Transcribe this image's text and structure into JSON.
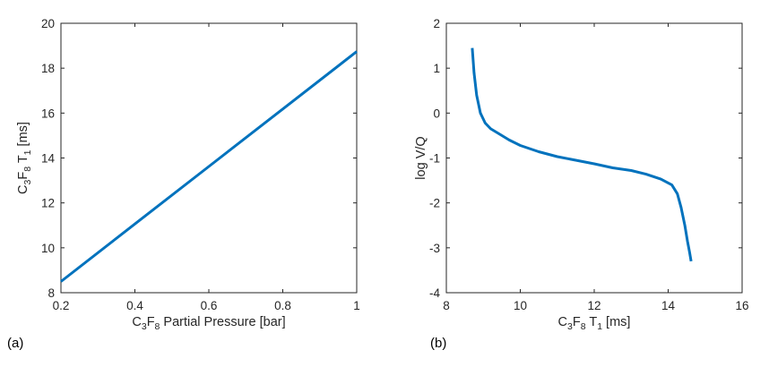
{
  "colors": {
    "series": "#0072BD",
    "axis": "#262626"
  },
  "chart_data": [
    {
      "type": "line",
      "panel_label": "(a)",
      "xlim": [
        0.2,
        1
      ],
      "ylim": [
        8,
        20
      ],
      "xticks": [
        0.2,
        0.4,
        0.6,
        0.8,
        1
      ],
      "xtick_labels": [
        "0.2",
        "0.4",
        "0.6",
        "0.8",
        "1"
      ],
      "yticks": [
        8,
        10,
        12,
        14,
        16,
        18,
        20
      ],
      "ytick_labels": [
        "8",
        "10",
        "12",
        "14",
        "16",
        "18",
        "20"
      ],
      "xlabel": {
        "parts": [
          "C",
          "3",
          "F",
          "8",
          " Partial Pressure [bar]"
        ]
      },
      "ylabel": {
        "parts": [
          "C",
          "3",
          "F",
          "8",
          " T",
          "1",
          " [ms]"
        ]
      },
      "grid": false,
      "series": [
        {
          "x": [
            0.2,
            0.4,
            0.6,
            0.8,
            1.0
          ],
          "y": [
            8.5,
            11.06,
            13.62,
            16.18,
            18.74
          ]
        }
      ]
    },
    {
      "type": "line",
      "panel_label": "(b)",
      "xlim": [
        8,
        16
      ],
      "ylim": [
        -4,
        2
      ],
      "xticks": [
        8,
        10,
        12,
        14,
        16
      ],
      "xtick_labels": [
        "8",
        "10",
        "12",
        "14",
        "16"
      ],
      "yticks": [
        -4,
        -3,
        -2,
        -1,
        0,
        1,
        2
      ],
      "ytick_labels": [
        "-4",
        "-3",
        "-2",
        "-1",
        "0",
        "1",
        "2"
      ],
      "xlabel": {
        "parts": [
          "C",
          "3",
          "F",
          "8",
          " T",
          "1",
          " [ms]"
        ]
      },
      "ylabel": {
        "text": "log V/Q"
      },
      "grid": false,
      "series": [
        {
          "x": [
            8.7,
            8.75,
            8.82,
            8.92,
            9.05,
            9.2,
            9.4,
            9.7,
            10.0,
            10.5,
            11.0,
            11.5,
            12.0,
            12.5,
            13.0,
            13.4,
            13.8,
            14.1,
            14.25,
            14.35,
            14.45,
            14.52,
            14.58,
            14.62
          ],
          "y": [
            1.45,
            0.9,
            0.4,
            0.0,
            -0.22,
            -0.35,
            -0.45,
            -0.6,
            -0.72,
            -0.86,
            -0.97,
            -1.05,
            -1.13,
            -1.22,
            -1.28,
            -1.36,
            -1.47,
            -1.6,
            -1.8,
            -2.1,
            -2.5,
            -2.85,
            -3.1,
            -3.3
          ]
        }
      ]
    }
  ]
}
